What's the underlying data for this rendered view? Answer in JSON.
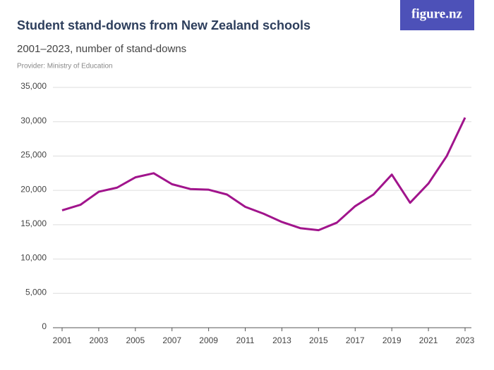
{
  "chart_data": {
    "type": "line",
    "title": "Student stand-downs from New Zealand schools",
    "subtitle": "2001–2023, number of stand-downs",
    "source": "Provider: Ministry of Education",
    "logo": "figure.nz",
    "x": [
      2001,
      2002,
      2003,
      2004,
      2005,
      2006,
      2007,
      2008,
      2009,
      2010,
      2011,
      2012,
      2013,
      2014,
      2015,
      2016,
      2017,
      2018,
      2019,
      2020,
      2021,
      2022,
      2023
    ],
    "series": [
      {
        "name": "Stand-downs",
        "color": "#a1148c",
        "values": [
          17100,
          17900,
          19800,
          20400,
          21900,
          22500,
          20900,
          20200,
          20100,
          19400,
          17600,
          16600,
          15400,
          14500,
          14200,
          15300,
          17700,
          19400,
          22300,
          18200,
          21000,
          25000,
          30600
        ]
      }
    ],
    "xlim": [
      2001,
      2023
    ],
    "xticks": [
      2001,
      2003,
      2005,
      2007,
      2009,
      2011,
      2013,
      2015,
      2017,
      2019,
      2021,
      2023
    ],
    "ylim": [
      0,
      35000
    ],
    "yticks": [
      0,
      {
        "value": 5000,
        "label": "5,000"
      },
      {
        "value": 10000,
        "label": "10,000"
      },
      {
        "value": 15000,
        "label": "15,000"
      },
      {
        "value": 20000,
        "label": "20,000"
      },
      {
        "value": 25000,
        "label": "25,000"
      },
      {
        "value": 30000,
        "label": "30,000"
      },
      {
        "value": 35000,
        "label": "35,000"
      }
    ],
    "grid": true
  }
}
